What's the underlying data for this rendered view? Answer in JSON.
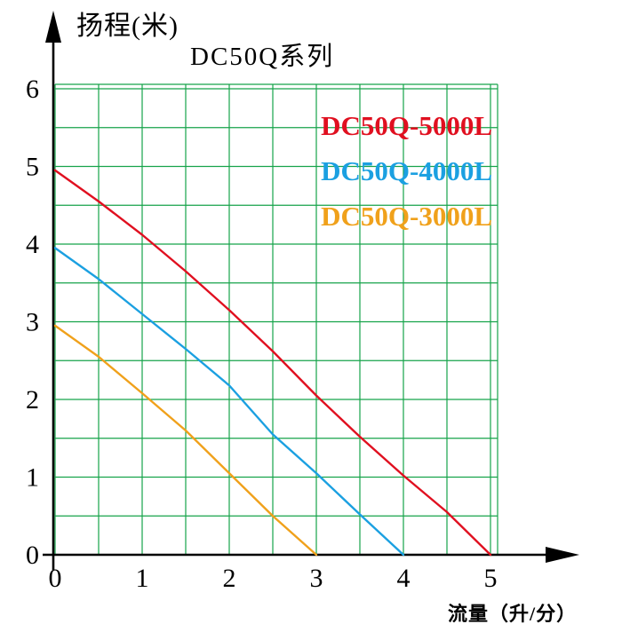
{
  "chart_data": {
    "type": "line",
    "title": "DC50Q系列",
    "ylabel": "扬程(米)",
    "xlabel": "流量（升/分）",
    "xlim": [
      0,
      5
    ],
    "ylim": [
      0,
      6
    ],
    "x_ticks": [
      0,
      1,
      2,
      3,
      4,
      5
    ],
    "y_ticks": [
      0,
      1,
      2,
      3,
      4,
      5,
      6
    ],
    "grid": {
      "on": true,
      "minor_step": 0.5,
      "color": "#16a34a"
    },
    "axis_color": "#000000",
    "legend_position": "upper-right",
    "series": [
      {
        "name": "DC50Q-5000L",
        "color": "#e01020",
        "points": [
          [
            0,
            4.95
          ],
          [
            0.5,
            4.55
          ],
          [
            1,
            4.12
          ],
          [
            1.5,
            3.65
          ],
          [
            2,
            3.15
          ],
          [
            2.5,
            2.62
          ],
          [
            3,
            2.05
          ],
          [
            3.5,
            1.52
          ],
          [
            4,
            1.02
          ],
          [
            4.5,
            0.55
          ],
          [
            5,
            0
          ]
        ]
      },
      {
        "name": "DC50Q-4000L",
        "color": "#1ba0e1",
        "points": [
          [
            0,
            3.95
          ],
          [
            0.5,
            3.55
          ],
          [
            1,
            3.1
          ],
          [
            1.5,
            2.65
          ],
          [
            2,
            2.18
          ],
          [
            2.5,
            1.55
          ],
          [
            3,
            1.05
          ],
          [
            3.5,
            0.52
          ],
          [
            4,
            0
          ]
        ]
      },
      {
        "name": "DC50Q-3000L",
        "color": "#f0a11b",
        "points": [
          [
            0,
            2.95
          ],
          [
            0.5,
            2.55
          ],
          [
            1,
            2.08
          ],
          [
            1.5,
            1.6
          ],
          [
            2,
            1.05
          ],
          [
            2.5,
            0.5
          ],
          [
            3,
            0
          ]
        ]
      }
    ]
  }
}
